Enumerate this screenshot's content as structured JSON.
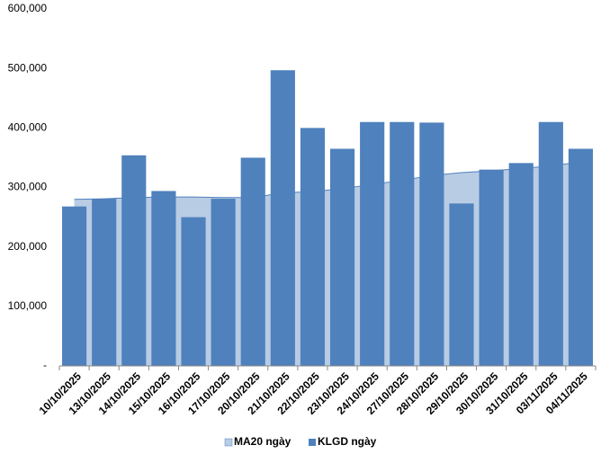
{
  "chart_data": {
    "type": "combo",
    "categories": [
      "10/10/2025",
      "13/10/2025",
      "14/10/2025",
      "15/10/2025",
      "16/10/2025",
      "17/10/2025",
      "20/10/2025",
      "21/10/2025",
      "22/10/2025",
      "23/10/2025",
      "24/10/2025",
      "27/10/2025",
      "28/10/2025",
      "29/10/2025",
      "30/10/2025",
      "31/10/2025",
      "03/11/2025",
      "04/11/2025"
    ],
    "series": [
      {
        "name": "MA20 ngày",
        "type": "area",
        "color": "#b8cce4",
        "line_color": "#4f81bd",
        "values": [
          280000,
          281000,
          283000,
          284000,
          284000,
          283000,
          283000,
          291000,
          293000,
          298000,
          305000,
          312000,
          320000,
          325000,
          328000,
          332000,
          336000,
          343000
        ]
      },
      {
        "name": "KLGD ngày",
        "type": "bar",
        "color": "#4f81bd",
        "values": [
          268000,
          281000,
          354000,
          294000,
          250000,
          281000,
          350000,
          497000,
          400000,
          365000,
          410000,
          410000,
          409000,
          273000,
          330000,
          341000,
          410000,
          365000
        ]
      }
    ],
    "ylim": [
      0,
      600000
    ],
    "yticks": [
      {
        "value": 0,
        "label": "-"
      },
      {
        "value": 100000,
        "label": "100,000"
      },
      {
        "value": 200000,
        "label": "200,000"
      },
      {
        "value": 300000,
        "label": "300,000"
      },
      {
        "value": 400000,
        "label": "400,000"
      },
      {
        "value": 500000,
        "label": "500,000"
      },
      {
        "value": 600000,
        "label": "600,000"
      }
    ],
    "legend": "bottom"
  }
}
